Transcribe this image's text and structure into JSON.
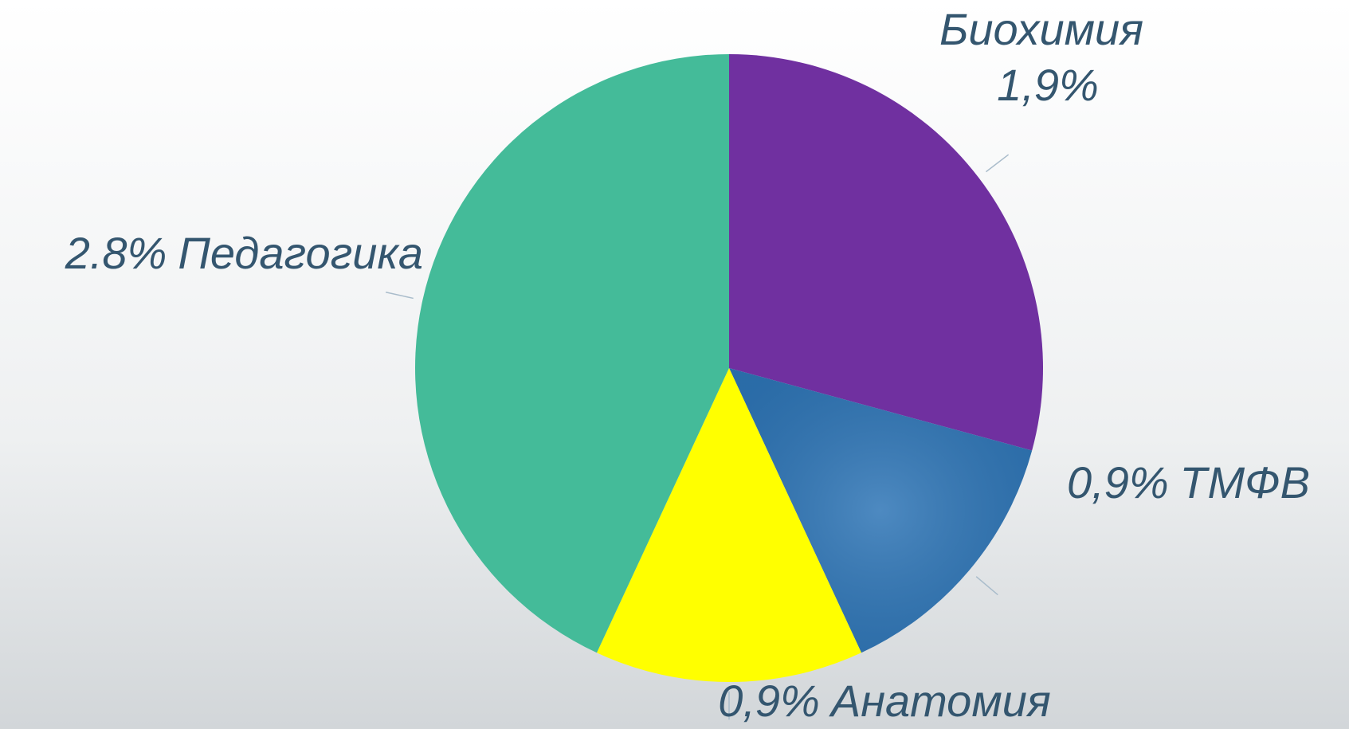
{
  "chart_data": {
    "type": "pie",
    "categories": [
      "Биохимия",
      "ТМФВ",
      "Анатомия",
      "Педагогика"
    ],
    "values": [
      1.9,
      0.9,
      0.9,
      2.8
    ],
    "value_labels": [
      "1,9%",
      "0,9%",
      "0,9%",
      "2.8%"
    ],
    "colors": [
      "#7030a0",
      "#2e75b6",
      "#ffff00",
      "#44bb99"
    ]
  }
}
